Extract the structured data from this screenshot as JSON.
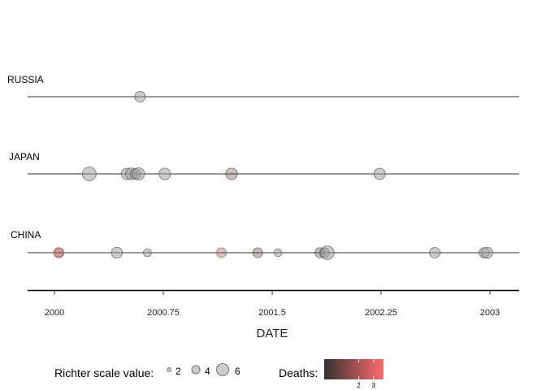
{
  "chart_data": {
    "type": "scatter",
    "xlabel": "DATE",
    "xlim": [
      1999.94,
      2003.07
    ],
    "x_ticks": [
      2000,
      2000.75,
      2001.5,
      2002.25,
      2003
    ],
    "x_tick_labels": [
      "2000",
      "2000.75",
      "2001.5",
      "2002.25",
      "2003"
    ],
    "countries": [
      "RUSSIA",
      "JAPAN",
      "CHINA"
    ],
    "series": [
      {
        "name": "RUSSIA",
        "points": [
          {
            "x": 2000.59,
            "richter": 5.3,
            "deaths": 0
          }
        ]
      },
      {
        "name": "JAPAN",
        "points": [
          {
            "x": 2000.24,
            "richter": 6.8,
            "deaths": 0
          },
          {
            "x": 2000.5,
            "richter": 5.6,
            "deaths": 0
          },
          {
            "x": 2000.53,
            "richter": 5.8,
            "deaths": 0
          },
          {
            "x": 2000.56,
            "richter": 5.2,
            "deaths": 0
          },
          {
            "x": 2000.58,
            "richter": 6.0,
            "deaths": 0
          },
          {
            "x": 2000.76,
            "richter": 5.7,
            "deaths": 0
          },
          {
            "x": 2001.22,
            "richter": 5.7,
            "deaths": 1
          },
          {
            "x": 2002.24,
            "richter": 5.6,
            "deaths": 0
          }
        ]
      },
      {
        "name": "CHINA",
        "points": [
          {
            "x": 2000.03,
            "richter": 5.0,
            "deaths": 3
          },
          {
            "x": 2000.03,
            "richter": 4.5,
            "deaths": 2
          },
          {
            "x": 2000.43,
            "richter": 5.4,
            "deaths": 0
          },
          {
            "x": 2000.64,
            "richter": 3.9,
            "deaths": 0
          },
          {
            "x": 2001.15,
            "richter": 4.8,
            "deaths": 2
          },
          {
            "x": 2001.4,
            "richter": 4.8,
            "deaths": 1
          },
          {
            "x": 2001.54,
            "richter": 3.8,
            "deaths": 0
          },
          {
            "x": 2001.83,
            "richter": 5.0,
            "deaths": 1
          },
          {
            "x": 2001.86,
            "richter": 4.8,
            "deaths": 0
          },
          {
            "x": 2001.88,
            "richter": 6.7,
            "deaths": 0
          },
          {
            "x": 2002.62,
            "richter": 5.2,
            "deaths": 0
          },
          {
            "x": 2002.96,
            "richter": 5.0,
            "deaths": 0
          },
          {
            "x": 2002.98,
            "richter": 5.5,
            "deaths": 0
          }
        ]
      }
    ],
    "legend": {
      "size_title": "Richter scale value:",
      "size_values": [
        2,
        4,
        6
      ],
      "size_labels": [
        "2",
        "4",
        "6"
      ],
      "color_title": "Deaths:",
      "color_tick_labels": [
        "2",
        "3"
      ],
      "color_range": [
        0,
        4
      ],
      "color_low": "#333333",
      "color_high": "#ff6b6b",
      "placement": "bottom"
    },
    "grid": false,
    "colors": {
      "timeline": "#757575",
      "point_fill": "#999999",
      "point_stroke": "#555555"
    }
  }
}
